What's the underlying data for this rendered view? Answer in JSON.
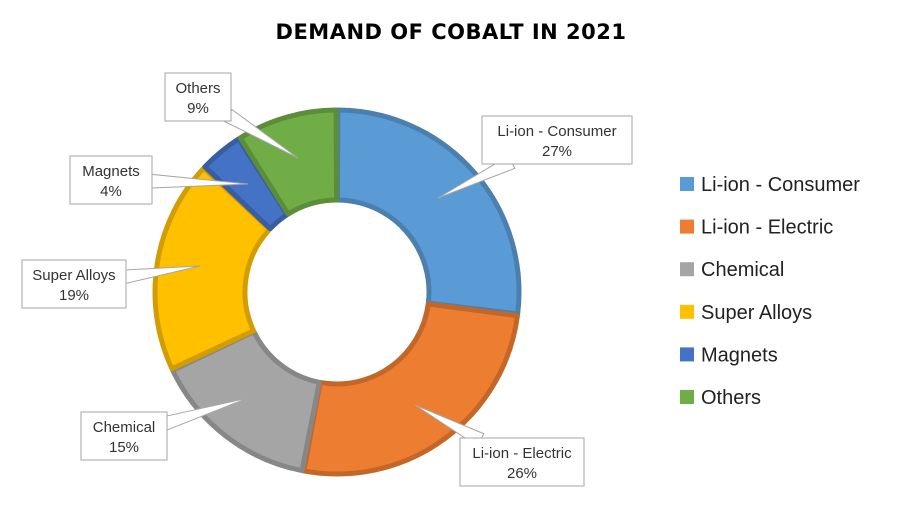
{
  "chart_data": {
    "type": "pie",
    "title": "DEMAND OF COBALT IN 2021",
    "donut": true,
    "legend_position": "right",
    "slices": [
      {
        "label": "Li-ion - Consumer",
        "value": 27,
        "value_label": "27%",
        "color": "#5b9bd5"
      },
      {
        "label": "Li-ion - Electric",
        "value": 26,
        "value_label": "26%",
        "color": "#ed7d31"
      },
      {
        "label": "Chemical",
        "value": 15,
        "value_label": "15%",
        "color": "#a5a5a5"
      },
      {
        "label": "Super Alloys",
        "value": 19,
        "value_label": "19%",
        "color": "#ffc000"
      },
      {
        "label": "Magnets",
        "value": 4,
        "value_label": "4%",
        "color": "#4472c4"
      },
      {
        "label": "Others",
        "value": 9,
        "value_label": "9%",
        "color": "#70ad47"
      }
    ]
  }
}
